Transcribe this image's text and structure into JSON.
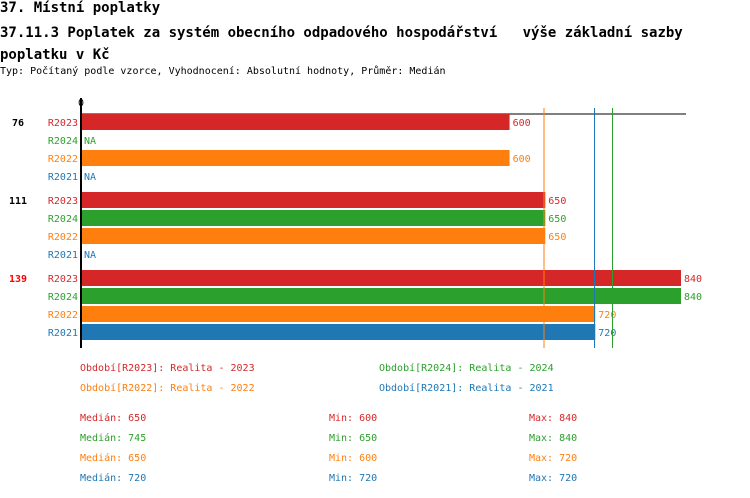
{
  "header": {
    "title": "37. Místní poplatky",
    "subtitle": "37.11.3 Poplatek za systém obecního odpadového hospodářství   výše základní sazby poplatku v Kč",
    "info": "Typ: Počítaný podle vzorce, Vyhodnocení: Absolutní hodnoty, Průměr: Medián"
  },
  "chart_data": {
    "type": "bar",
    "orientation": "horizontal",
    "xlim": [
      0,
      840
    ],
    "axis_tick_label": "0",
    "series_colors": {
      "R2023": "#d62728",
      "R2024": "#2ca02c",
      "R2022": "#ff7f0e",
      "R2021": "#1f77b4"
    },
    "groups": [
      {
        "label": "76",
        "label_color": "#000000",
        "bars": [
          {
            "series": "R2023",
            "value": 600,
            "label": "600"
          },
          {
            "series": "R2024",
            "value": null,
            "label": "NA"
          },
          {
            "series": "R2022",
            "value": 600,
            "label": "600"
          },
          {
            "series": "R2021",
            "value": null,
            "label": "NA"
          }
        ]
      },
      {
        "label": "111",
        "label_color": "#000000",
        "bars": [
          {
            "series": "R2023",
            "value": 650,
            "label": "650"
          },
          {
            "series": "R2024",
            "value": 650,
            "label": "650"
          },
          {
            "series": "R2022",
            "value": 650,
            "label": "650"
          },
          {
            "series": "R2021",
            "value": null,
            "label": "NA"
          }
        ]
      },
      {
        "label": "139",
        "label_color": "#ff0000",
        "bars": [
          {
            "series": "R2023",
            "value": 840,
            "label": "840"
          },
          {
            "series": "R2024",
            "value": 840,
            "label": "840"
          },
          {
            "series": "R2022",
            "value": 720,
            "label": "720"
          },
          {
            "series": "R2021",
            "value": 720,
            "label": "720"
          }
        ]
      }
    ],
    "median_lines": [
      {
        "series": "R2023",
        "value": 650
      },
      {
        "series": "R2022",
        "value": 650
      },
      {
        "series": "R2021",
        "value": 720
      },
      {
        "series": "R2024",
        "value": 745
      }
    ],
    "legend": [
      {
        "series": "R2023",
        "text": "Období[R2023]: Realita - 2023"
      },
      {
        "series": "R2024",
        "text": "Období[R2024]: Realita - 2024"
      },
      {
        "series": "R2022",
        "text": "Období[R2022]: Realita - 2022"
      },
      {
        "series": "R2021",
        "text": "Období[R2021]: Realita - 2021"
      }
    ],
    "stats": [
      {
        "series": "R2023",
        "median": "Medián: 650",
        "min": "Min: 600",
        "max": "Max: 840"
      },
      {
        "series": "R2024",
        "median": "Medián: 745",
        "min": "Min: 650",
        "max": "Max: 840"
      },
      {
        "series": "R2022",
        "median": "Medián: 650",
        "min": "Min: 600",
        "max": "Max: 720"
      },
      {
        "series": "R2021",
        "median": "Medián: 720",
        "min": "Min: 720",
        "max": "Max: 720"
      }
    ]
  }
}
